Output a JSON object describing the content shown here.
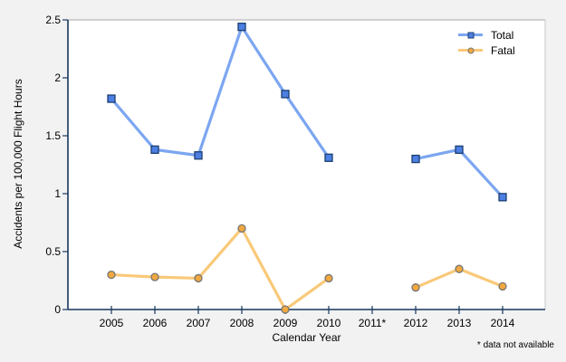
{
  "chart_data": {
    "type": "line",
    "title": "",
    "xlabel": "Calendar Year",
    "ylabel": "Accidents per 100,000 Flight Hours",
    "categories": [
      "2005",
      "2006",
      "2007",
      "2008",
      "2009",
      "2010",
      "2011*",
      "2012",
      "2013",
      "2014"
    ],
    "series": [
      {
        "name": "Total",
        "marker": "square",
        "line_color": "#7ca6f0",
        "marker_fill": "#4d7fe3",
        "marker_border": "#1a3e6f",
        "values": [
          1.82,
          1.38,
          1.33,
          2.44,
          1.86,
          1.31,
          null,
          1.3,
          1.38,
          0.97
        ]
      },
      {
        "name": "Fatal",
        "marker": "circle",
        "line_color": "#f9c979",
        "marker_fill": "#f1a83e",
        "marker_border": "#777777",
        "values": [
          0.3,
          0.28,
          0.27,
          0.7,
          0.0,
          0.27,
          null,
          0.19,
          0.35,
          0.2
        ]
      }
    ],
    "ylim": [
      0,
      2.5
    ],
    "yticks": [
      0,
      0.5,
      1,
      1.5,
      2,
      2.5
    ],
    "ytick_labels": [
      "0",
      "0.5",
      "1",
      "1.5",
      "2",
      "2.5"
    ],
    "legend_position": "top-right",
    "grid": false,
    "axis_color": "#17375e",
    "plot_bg": "#ffffff",
    "page_bg": "#f2f2f2",
    "border_top_color": "#a9a9a9",
    "border_right_color": "#c6c6c6"
  },
  "footnote": "* data not available"
}
